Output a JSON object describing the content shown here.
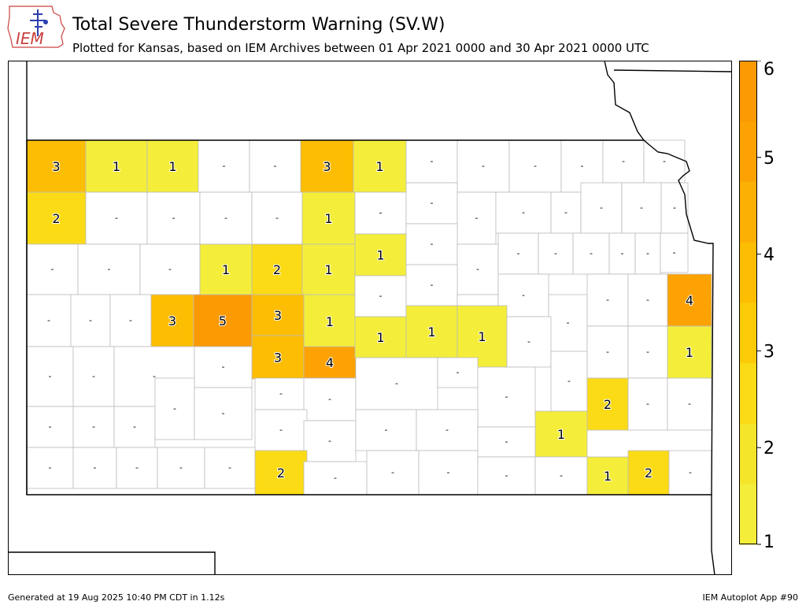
{
  "header": {
    "logo_text": "IEM",
    "title": "Total Severe Thunderstorm Warning (SV.W)",
    "subtitle": "Plotted for Kansas, based on IEM Archives  between 01 Apr 2021 0000 and 30 Apr 2021 0000 UTC"
  },
  "footer": {
    "generated": "Generated at 19 Aug 2025 10:40 PM CDT in 1.12s",
    "app": "IEM Autoplot App #90"
  },
  "colors": {
    "1": "#f4ee3a",
    "2": "#fbdb15",
    "3": "#fdbd03",
    "4": "#fca303",
    "5": "#fb9a03",
    "empty": "#ffffff",
    "border": "#bbbbbb"
  },
  "colorbar": {
    "ticks": [
      "1",
      "2",
      "3",
      "4",
      "5",
      "6"
    ],
    "bands": [
      "#f4ee3a",
      "#f5e52a",
      "#fbdb15",
      "#fccb08",
      "#fdbd03",
      "#fdb004",
      "#fca303",
      "#fb9a03"
    ]
  },
  "map": {
    "empty_label": "-",
    "counties": [
      {
        "v": 3
      },
      {
        "v": 1
      },
      {
        "v": 1
      },
      {
        "v": null
      },
      {
        "v": null
      },
      {
        "v": 3
      },
      {
        "v": 1
      },
      {
        "v": null
      },
      {
        "v": null
      },
      {
        "v": null
      },
      {
        "v": null
      },
      {
        "v": null
      },
      {
        "v": null
      },
      {
        "v": 2
      },
      {
        "v": null
      },
      {
        "v": null
      },
      {
        "v": null
      },
      {
        "v": null
      },
      {
        "v": 1
      },
      {
        "v": null
      },
      {
        "v": null
      },
      {
        "v": null
      },
      {
        "v": null
      },
      {
        "v": null
      },
      {
        "v": null
      },
      {
        "v": null
      },
      {
        "v": null
      },
      {
        "v": null
      },
      {
        "v": null
      },
      {
        "v": null
      },
      {
        "v": 1
      },
      {
        "v": 2
      },
      {
        "v": 1
      },
      {
        "v": 1
      },
      {
        "v": null
      },
      {
        "v": null
      },
      {
        "v": null
      },
      {
        "v": null
      },
      {
        "v": null
      },
      {
        "v": null
      },
      {
        "v": null
      },
      {
        "v": null
      },
      {
        "v": null
      },
      {
        "v": null
      },
      {
        "v": null
      },
      {
        "v": 3
      },
      {
        "v": 5
      },
      {
        "v": 3
      },
      {
        "v": 1
      },
      {
        "v": null
      },
      {
        "v": null
      },
      {
        "v": null
      },
      {
        "v": null
      },
      {
        "v": null
      },
      {
        "v": null
      },
      {
        "v": null
      },
      {
        "v": 4
      },
      {
        "v": 3
      },
      {
        "v": 4
      },
      {
        "v": 1
      },
      {
        "v": 1
      },
      {
        "v": 1
      },
      {
        "v": null
      },
      {
        "v": null
      },
      {
        "v": null
      },
      {
        "v": null
      },
      {
        "v": null
      },
      {
        "v": null
      },
      {
        "v": null
      },
      {
        "v": null
      },
      {
        "v": 1
      },
      {
        "v": null
      },
      {
        "v": null
      },
      {
        "v": null
      },
      {
        "v": null
      },
      {
        "v": null
      },
      {
        "v": null
      },
      {
        "v": null
      },
      {
        "v": null
      },
      {
        "v": null
      },
      {
        "v": null
      },
      {
        "v": 1
      },
      {
        "v": 2
      },
      {
        "v": null
      },
      {
        "v": null
      },
      {
        "v": null
      },
      {
        "v": null
      },
      {
        "v": null
      },
      {
        "v": null
      },
      {
        "v": null
      },
      {
        "v": null
      },
      {
        "v": null
      },
      {
        "v": null
      },
      {
        "v": null
      },
      {
        "v": null
      },
      {
        "v": 2
      },
      {
        "v": null
      },
      {
        "v": null
      },
      {
        "v": null
      },
      {
        "v": null
      },
      {
        "v": null
      },
      {
        "v": 1
      },
      {
        "v": 2
      },
      {
        "v": null
      },
      {
        "v": null
      },
      {
        "v": null
      },
      {
        "v": null
      },
      {
        "v": null
      }
    ]
  }
}
